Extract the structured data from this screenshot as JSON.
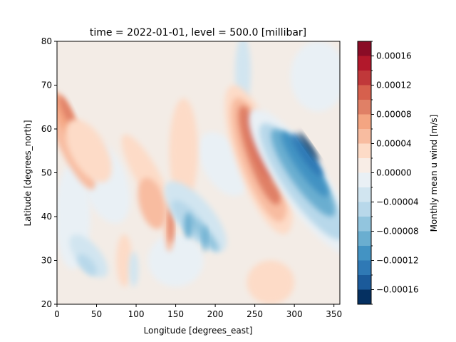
{
  "chart_data": {
    "type": "heatmap",
    "title": "time = 2022-01-01, level = 500.0 [millibar]",
    "xlabel": "Longitude [degrees_east]",
    "ylabel": "Latitude [degrees_north]",
    "xlim": [
      0,
      357.5
    ],
    "ylim": [
      20,
      80
    ],
    "x_ticks": [
      "0",
      "50",
      "100",
      "150",
      "200",
      "250",
      "300",
      "350"
    ],
    "y_ticks": [
      "20",
      "30",
      "40",
      "50",
      "60",
      "70",
      "80"
    ],
    "colorbar": {
      "label": "Monthly mean u wind [m/s]",
      "range": [
        -0.00018,
        0.00018
      ],
      "levels": [
        -0.00018,
        -0.00016,
        -0.00014,
        -0.00012,
        -0.0001,
        -8e-05,
        -6e-05,
        -4e-05,
        -2e-05,
        0,
        2e-05,
        4e-05,
        6e-05,
        8e-05,
        0.0001,
        0.00012,
        0.00014,
        0.00016,
        0.00018
      ],
      "tick_labels": [
        "−0.00016",
        "−0.00012",
        "−0.00008",
        "−0.00004",
        "0.00000",
        "0.00004",
        "0.00008",
        "0.00012",
        "0.00016"
      ],
      "colors": [
        "#053061",
        "#1b5a9a",
        "#2f79b5",
        "#4393c3",
        "#6aaed0",
        "#92c5de",
        "#b8d8ea",
        "#d1e5f0",
        "#e9f0f5",
        "#f8ede6",
        "#fddbc7",
        "#f8bca0",
        "#f4a582",
        "#e08066",
        "#d6604d",
        "#c0383a",
        "#b2182b",
        "#8a0c26",
        "#67001f"
      ]
    },
    "features": [
      {
        "lon": 252,
        "lat": 54,
        "value": 0.00012,
        "description": "positive anomaly band 235-275E, 35-65N"
      },
      {
        "lon": 262,
        "lat": 56,
        "value": 0.00015
      },
      {
        "lon": 312,
        "lat": 53,
        "value": -0.00017,
        "description": "negative anomaly band 285-335E, 30-70N"
      },
      {
        "lon": 185,
        "lat": 36,
        "value": -0.0001
      },
      {
        "lon": 168,
        "lat": 42,
        "value": -8e-05
      },
      {
        "lon": 143,
        "lat": 38,
        "value": 7e-05
      },
      {
        "lon": 12,
        "lat": 62,
        "value": 6e-05
      },
      {
        "lon": 40,
        "lat": 30,
        "value": -5e-05
      },
      {
        "lon": 240,
        "lat": 72,
        "value": -3e-05
      },
      {
        "lon": 125,
        "lat": 44,
        "value": 4e-05
      }
    ]
  }
}
